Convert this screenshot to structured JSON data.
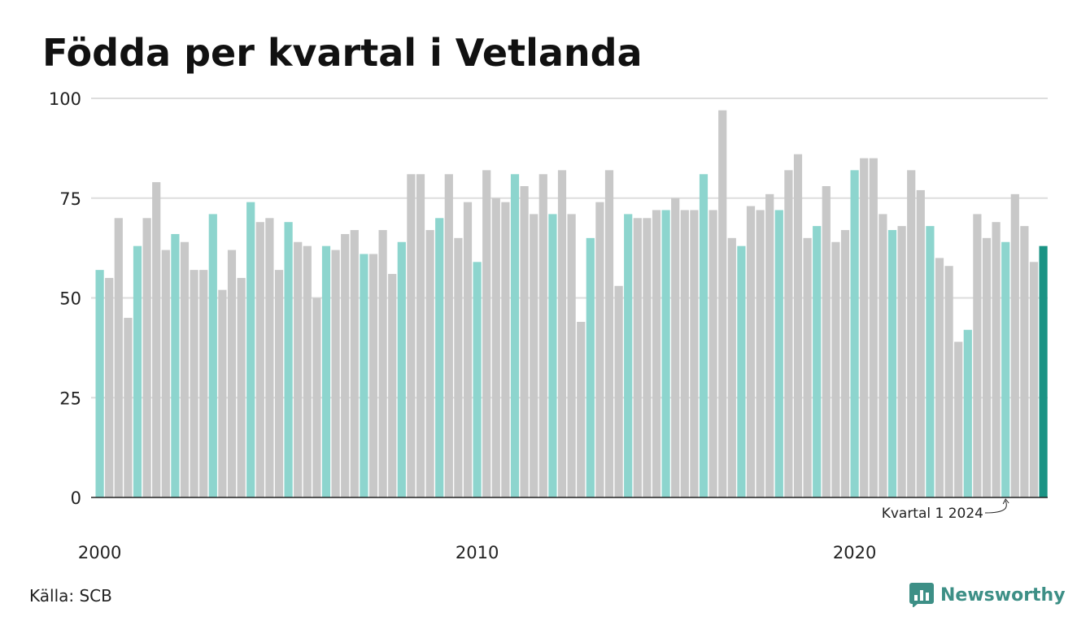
{
  "title": "Födda per kvartal i Vetlanda",
  "source": "Källa: SCB",
  "brand": {
    "name": "Newsworthy"
  },
  "colors": {
    "q1": "#8dd5ce",
    "other": "#c8c8c8",
    "highlight": "#1a9384",
    "grid": "#dddddd",
    "axis": "#222222",
    "text": "#222222"
  },
  "chart_data": {
    "type": "bar",
    "title": "Födda per kvartal i Vetlanda",
    "xlabel": "",
    "ylabel": "",
    "ylim": [
      0,
      100
    ],
    "yticks": [
      0,
      25,
      50,
      75,
      100
    ],
    "xticks": [
      "2000",
      "2010",
      "2020"
    ],
    "grid": true,
    "start": {
      "year": 2000,
      "quarter": 1
    },
    "annotation": {
      "text": "Kvartal 1 2024"
    },
    "values": [
      57,
      55,
      70,
      45,
      63,
      70,
      79,
      62,
      66,
      64,
      57,
      57,
      71,
      52,
      62,
      55,
      74,
      69,
      70,
      57,
      69,
      64,
      63,
      50,
      63,
      62,
      66,
      67,
      61,
      61,
      67,
      56,
      64,
      81,
      81,
      67,
      70,
      81,
      65,
      74,
      59,
      82,
      75,
      74,
      81,
      78,
      71,
      81,
      71,
      82,
      71,
      44,
      65,
      74,
      82,
      53,
      71,
      70,
      70,
      72,
      72,
      75,
      72,
      72,
      81,
      72,
      97,
      65,
      63,
      73,
      72,
      76,
      72,
      82,
      86,
      65,
      68,
      78,
      64,
      67,
      82,
      85,
      85,
      71,
      67,
      68,
      82,
      77,
      68,
      60,
      58,
      39,
      42,
      71,
      65,
      69,
      64,
      76,
      68,
      59,
      63
    ]
  }
}
